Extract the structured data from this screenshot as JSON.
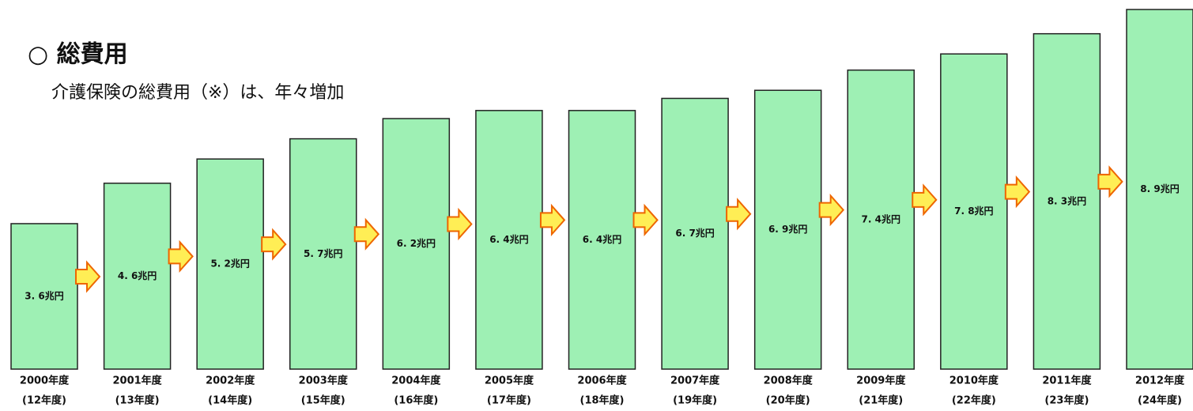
{
  "chart_data": {
    "type": "bar",
    "title": "○ 総費用",
    "subtitle": "介護保険の総費用（※）は、年々増加",
    "categories": [
      [
        "2000年度",
        "(12年度)"
      ],
      [
        "2001年度",
        "(13年度)"
      ],
      [
        "2002年度",
        "(14年度)"
      ],
      [
        "2003年度",
        "(15年度)"
      ],
      [
        "2004年度",
        "(16年度)"
      ],
      [
        "2005年度",
        "(17年度)"
      ],
      [
        "2006年度",
        "(18年度)"
      ],
      [
        "2007年度",
        "(19年度)"
      ],
      [
        "2008年度",
        "(20年度)"
      ],
      [
        "2009年度",
        "(21年度)"
      ],
      [
        "2010年度",
        "(22年度)"
      ],
      [
        "2011年度",
        "(23年度)"
      ],
      [
        "2012年度",
        "(24年度)"
      ]
    ],
    "values": [
      3.6,
      4.6,
      5.2,
      5.7,
      6.2,
      6.4,
      6.4,
      6.7,
      6.9,
      7.4,
      7.8,
      8.3,
      8.9
    ],
    "value_labels": [
      "3. 6兆円",
      "4. 6兆円",
      "5. 2兆円",
      "5. 7兆円",
      "6. 2兆円",
      "6. 4兆円",
      "6. 4兆円",
      "6. 7兆円",
      "6. 9兆円",
      "7. 4兆円",
      "7. 8兆円",
      "8. 3兆円",
      "8. 9兆円"
    ],
    "color": "#9ef0b4"
  }
}
